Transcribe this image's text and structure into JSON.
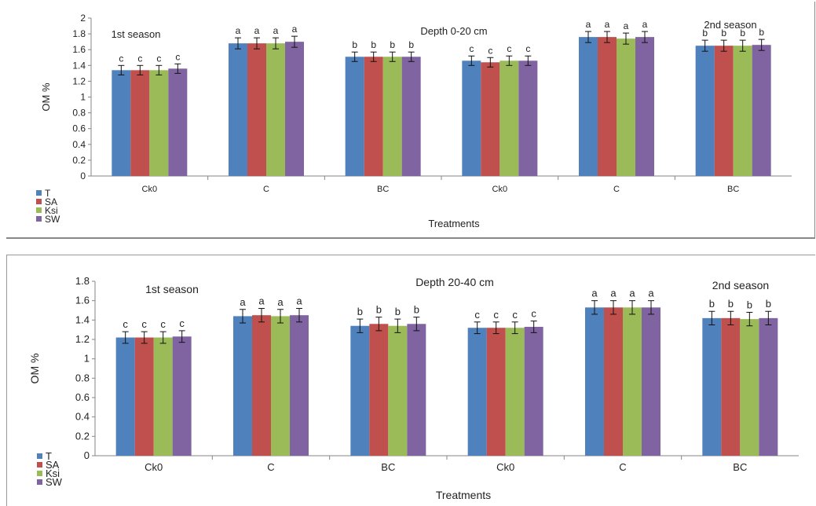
{
  "chart_data": [
    {
      "type": "bar",
      "title": "",
      "annotations": [
        "1st season",
        "Depth 0-20 cm",
        "2nd season"
      ],
      "xlabel": "Treatments",
      "ylabel": "OM %",
      "ylim": [
        0,
        2
      ],
      "yticks": [
        "0",
        "0.2",
        "0.4",
        "0.6",
        "0.8",
        "1",
        "1.2",
        "1.4",
        "1.6",
        "1.8",
        "2"
      ],
      "categories": [
        "Ck0",
        "C",
        "BC",
        "Ck0",
        "C",
        "BC"
      ],
      "legend": "left-bottom",
      "grid": false,
      "series": [
        {
          "name": "T",
          "color": "#4f81bd",
          "values": [
            1.34,
            1.68,
            1.51,
            1.46,
            1.76,
            1.65
          ],
          "errors": [
            0.06,
            0.07,
            0.06,
            0.06,
            0.07,
            0.07
          ],
          "letters": [
            "c",
            "a",
            "b",
            "c",
            "a",
            "b"
          ]
        },
        {
          "name": "SA",
          "color": "#c0504d",
          "values": [
            1.34,
            1.68,
            1.51,
            1.44,
            1.76,
            1.65
          ],
          "errors": [
            0.06,
            0.07,
            0.06,
            0.06,
            0.07,
            0.07
          ],
          "letters": [
            "c",
            "a",
            "b",
            "c",
            "a",
            "b"
          ]
        },
        {
          "name": "Ksi",
          "color": "#9bbb59",
          "values": [
            1.34,
            1.68,
            1.51,
            1.46,
            1.74,
            1.65
          ],
          "errors": [
            0.06,
            0.07,
            0.06,
            0.06,
            0.07,
            0.07
          ],
          "letters": [
            "c",
            "a",
            "b",
            "c",
            "a",
            "b"
          ]
        },
        {
          "name": "SW",
          "color": "#8064a2",
          "values": [
            1.36,
            1.7,
            1.51,
            1.46,
            1.76,
            1.66
          ],
          "errors": [
            0.06,
            0.07,
            0.06,
            0.06,
            0.07,
            0.07
          ],
          "letters": [
            "c",
            "a",
            "b",
            "c",
            "a",
            "b"
          ]
        }
      ]
    },
    {
      "type": "bar",
      "title": "",
      "annotations": [
        "1st season",
        "Depth 20-40 cm",
        "2nd season"
      ],
      "xlabel": "Treatments",
      "ylabel": "OM %",
      "ylim": [
        0,
        1.8
      ],
      "yticks": [
        "0",
        "0.2",
        "0.4",
        "0.6",
        "0.8",
        "1",
        "1.2",
        "1.4",
        "1.6",
        "1.8"
      ],
      "categories": [
        "Ck0",
        "C",
        "BC",
        "Ck0",
        "C",
        "BC"
      ],
      "legend": "left-bottom",
      "grid": false,
      "series": [
        {
          "name": "T",
          "color": "#4f81bd",
          "values": [
            1.22,
            1.44,
            1.34,
            1.32,
            1.53,
            1.42
          ],
          "errors": [
            0.06,
            0.07,
            0.07,
            0.06,
            0.07,
            0.07
          ],
          "letters": [
            "c",
            "a",
            "b",
            "c",
            "a",
            "b"
          ]
        },
        {
          "name": "SA",
          "color": "#c0504d",
          "values": [
            1.22,
            1.45,
            1.36,
            1.32,
            1.53,
            1.42
          ],
          "errors": [
            0.06,
            0.07,
            0.07,
            0.06,
            0.07,
            0.07
          ],
          "letters": [
            "c",
            "a",
            "b",
            "c",
            "a",
            "b"
          ]
        },
        {
          "name": "Ksi",
          "color": "#9bbb59",
          "values": [
            1.22,
            1.44,
            1.34,
            1.32,
            1.53,
            1.41
          ],
          "errors": [
            0.06,
            0.07,
            0.07,
            0.06,
            0.07,
            0.07
          ],
          "letters": [
            "c",
            "a",
            "b",
            "c",
            "a",
            "b"
          ]
        },
        {
          "name": "SW",
          "color": "#8064a2",
          "values": [
            1.23,
            1.45,
            1.36,
            1.33,
            1.53,
            1.42
          ],
          "errors": [
            0.06,
            0.07,
            0.07,
            0.06,
            0.07,
            0.07
          ],
          "letters": [
            "c",
            "a",
            "b",
            "c",
            "a",
            "b"
          ]
        }
      ]
    }
  ]
}
